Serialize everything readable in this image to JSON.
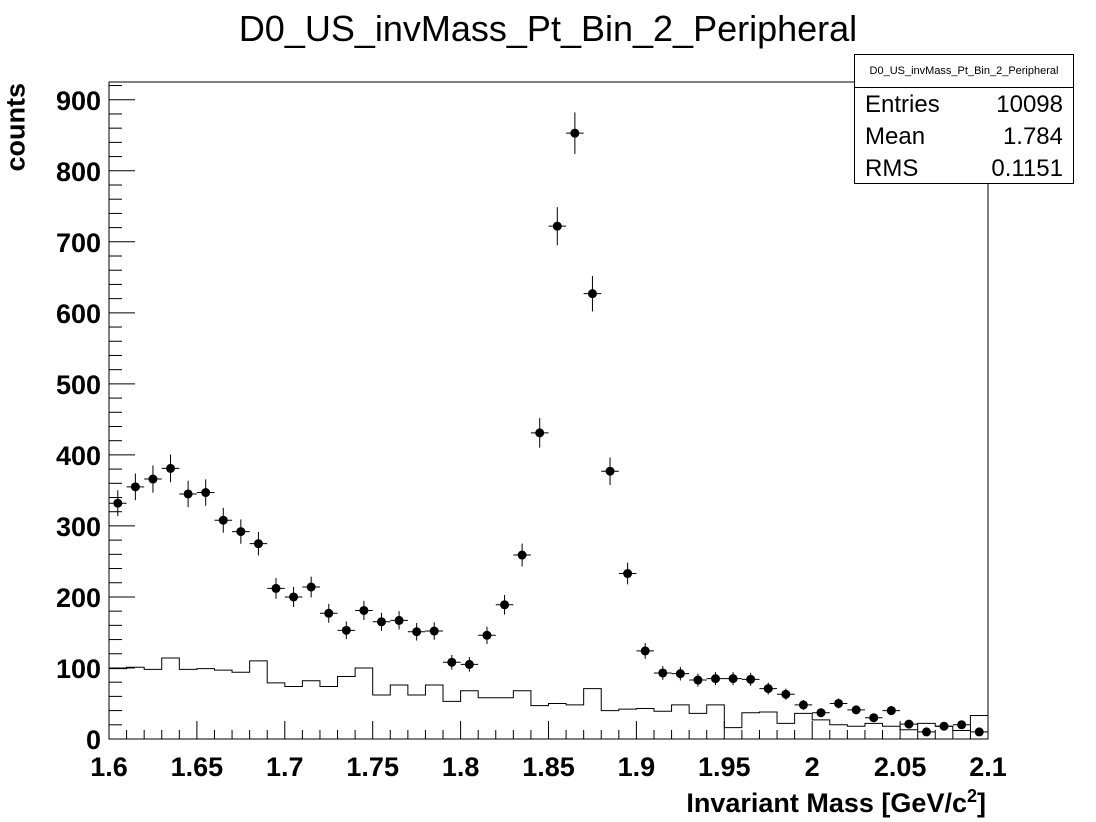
{
  "chart_data": {
    "type": "scatter",
    "title": "D0_US_invMass_Pt_Bin_2_Peripheral",
    "xlabel": "Invariant Mass [GeV/c^2]",
    "xlabel_base": "Invariant Mass [GeV/c",
    "xlabel_sup": "2",
    "xlabel_end": "]",
    "ylabel": "counts",
    "xlim": [
      1.6,
      2.1
    ],
    "ylim": [
      0,
      925
    ],
    "x_ticks": [
      "1.6",
      "1.65",
      "1.7",
      "1.75",
      "1.8",
      "1.85",
      "1.9",
      "1.95",
      "2",
      "2.05",
      "2.1"
    ],
    "y_ticks": [
      "0",
      "100",
      "200",
      "300",
      "400",
      "500",
      "600",
      "700",
      "800",
      "900"
    ],
    "grid": false,
    "stats_box": {
      "title": "D0_US_invMass_Pt_Bin_2_Peripheral",
      "entries_label": "Entries",
      "entries_value": "10098",
      "mean_label": "Mean",
      "mean_value": "1.784",
      "rms_label": "RMS",
      "rms_value": "0.1151"
    },
    "series": [
      {
        "style": "markers-with-error-bars",
        "x": [
          1.605,
          1.615,
          1.625,
          1.635,
          1.645,
          1.655,
          1.665,
          1.675,
          1.685,
          1.695,
          1.705,
          1.715,
          1.725,
          1.735,
          1.745,
          1.755,
          1.765,
          1.775,
          1.785,
          1.795,
          1.805,
          1.815,
          1.825,
          1.835,
          1.845,
          1.855,
          1.865,
          1.875,
          1.885,
          1.895,
          1.905,
          1.915,
          1.925,
          1.935,
          1.945,
          1.955,
          1.965,
          1.975,
          1.985,
          1.995,
          2.005,
          2.015,
          2.025,
          2.035,
          2.045,
          2.055,
          2.065,
          2.075,
          2.085,
          2.095
        ],
        "y": [
          332,
          355,
          366,
          381,
          345,
          347,
          308,
          292,
          275,
          212,
          200,
          214,
          177,
          153,
          181,
          165,
          167,
          151,
          152,
          108,
          105,
          146,
          189,
          259,
          431,
          722,
          853,
          627,
          377,
          233,
          124,
          93,
          92,
          83,
          85,
          85,
          84,
          71,
          63,
          48,
          37,
          50,
          41,
          30,
          40,
          21,
          10,
          18,
          20,
          10
        ]
      },
      {
        "style": "step-histogram",
        "x": [
          1.605,
          1.615,
          1.625,
          1.635,
          1.645,
          1.655,
          1.665,
          1.675,
          1.685,
          1.695,
          1.705,
          1.715,
          1.725,
          1.735,
          1.745,
          1.755,
          1.765,
          1.775,
          1.785,
          1.795,
          1.805,
          1.815,
          1.825,
          1.835,
          1.845,
          1.855,
          1.865,
          1.875,
          1.885,
          1.895,
          1.905,
          1.915,
          1.925,
          1.935,
          1.945,
          1.955,
          1.965,
          1.975,
          1.985,
          1.995,
          2.005,
          2.015,
          2.025,
          2.035,
          2.045,
          2.055,
          2.065,
          2.075,
          2.085,
          2.095
        ],
        "y": [
          99,
          101,
          98,
          114,
          98,
          99,
          97,
          94,
          110,
          79,
          74,
          82,
          74,
          88,
          100,
          62,
          76,
          62,
          76,
          53,
          68,
          58,
          58,
          68,
          47,
          50,
          48,
          71,
          40,
          42,
          43,
          39,
          48,
          36,
          48,
          16,
          37,
          38,
          22,
          36,
          27,
          20,
          18,
          22,
          18,
          13,
          22,
          18,
          12,
          33
        ]
      }
    ]
  }
}
